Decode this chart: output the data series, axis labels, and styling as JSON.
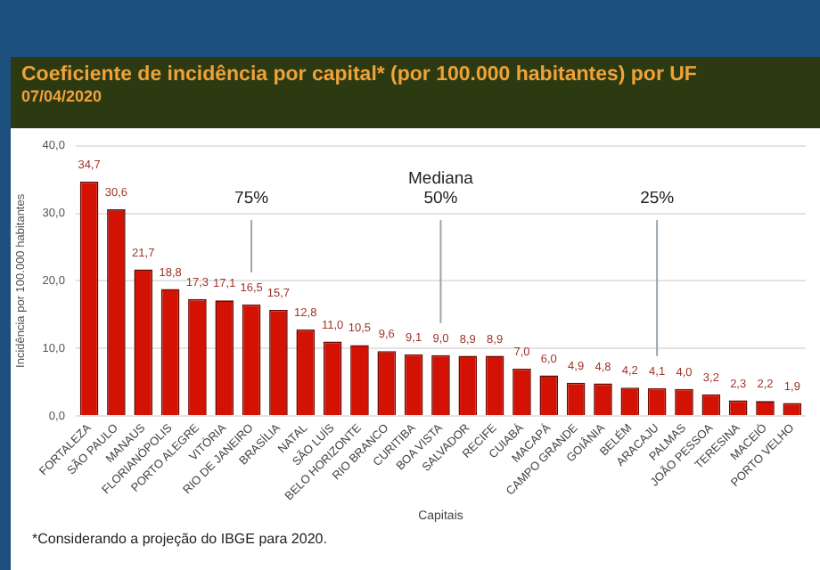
{
  "chart_data": {
    "type": "bar",
    "title": "Coeficiente de incidência por capital* (por 100.000 habitantes) por UF",
    "subtitle": "07/04/2020",
    "xlabel": "Capitais",
    "ylabel": "Incidência por 100.000 habitantes",
    "categories": [
      "FORTALEZA",
      "SÃO PAULO",
      "MANAUS",
      "FLORIANÓPOLIS",
      "PORTO ALEGRE",
      "VITÓRIA",
      "RIO DE JANEIRO",
      "BRASÍLIA",
      "NATAL",
      "SÃO LUÍS",
      "BELO HORIZONTE",
      "RIO BRANCO",
      "CURITIBA",
      "BOA VISTA",
      "SALVADOR",
      "RECIFE",
      "CUIABÁ",
      "MACAPÁ",
      "CAMPO GRANDE",
      "GOIÂNIA",
      "BELÉM",
      "ARACAJU",
      "PALMAS",
      "JOÃO PESSOA",
      "TERESINA",
      "MACEIÓ",
      "PORTO VELHO"
    ],
    "values": [
      34.7,
      30.6,
      21.7,
      18.8,
      17.3,
      17.1,
      16.5,
      15.7,
      12.8,
      11.0,
      10.5,
      9.6,
      9.1,
      9.0,
      8.9,
      8.9,
      7.0,
      6.0,
      4.9,
      4.8,
      4.2,
      4.1,
      4.0,
      3.2,
      2.3,
      2.2,
      1.9
    ],
    "value_labels": [
      "34,7",
      "30,6",
      "21,7",
      "18,8",
      "17,3",
      "17,1",
      "16,5",
      "15,7",
      "12,8",
      "11,0",
      "10,5",
      "9,6",
      "9,1",
      "9,0",
      "8,9",
      "8,9",
      "7,0",
      "6,0",
      "4,9",
      "4,8",
      "4,2",
      "4,1",
      "4,0",
      "3,2",
      "2,3",
      "2,2",
      "1,9"
    ],
    "color": "#d41204",
    "ylim": [
      0,
      40
    ],
    "yticks": [
      {
        "value": 0,
        "label": "0,0"
      },
      {
        "value": 10,
        "label": "10,0"
      },
      {
        "value": 20,
        "label": "20,0"
      },
      {
        "value": 30,
        "label": "30,0"
      },
      {
        "value": 40,
        "label": "40,0"
      }
    ],
    "grid": "y",
    "legend": false,
    "ref_lines": [
      {
        "axis": "x",
        "value": "RIO DE JANEIRO",
        "label": "75%",
        "color": "#9aa4ad"
      },
      {
        "axis": "x",
        "value": "BOA VISTA",
        "label": "Mediana\n50%",
        "color": "#9aa4ad"
      },
      {
        "axis": "x",
        "value": "ARACAJU",
        "label": "25%",
        "color": "#9aa4ad"
      }
    ],
    "annotations": [
      "*Considerando a projeção do IBGE para 2020."
    ]
  }
}
